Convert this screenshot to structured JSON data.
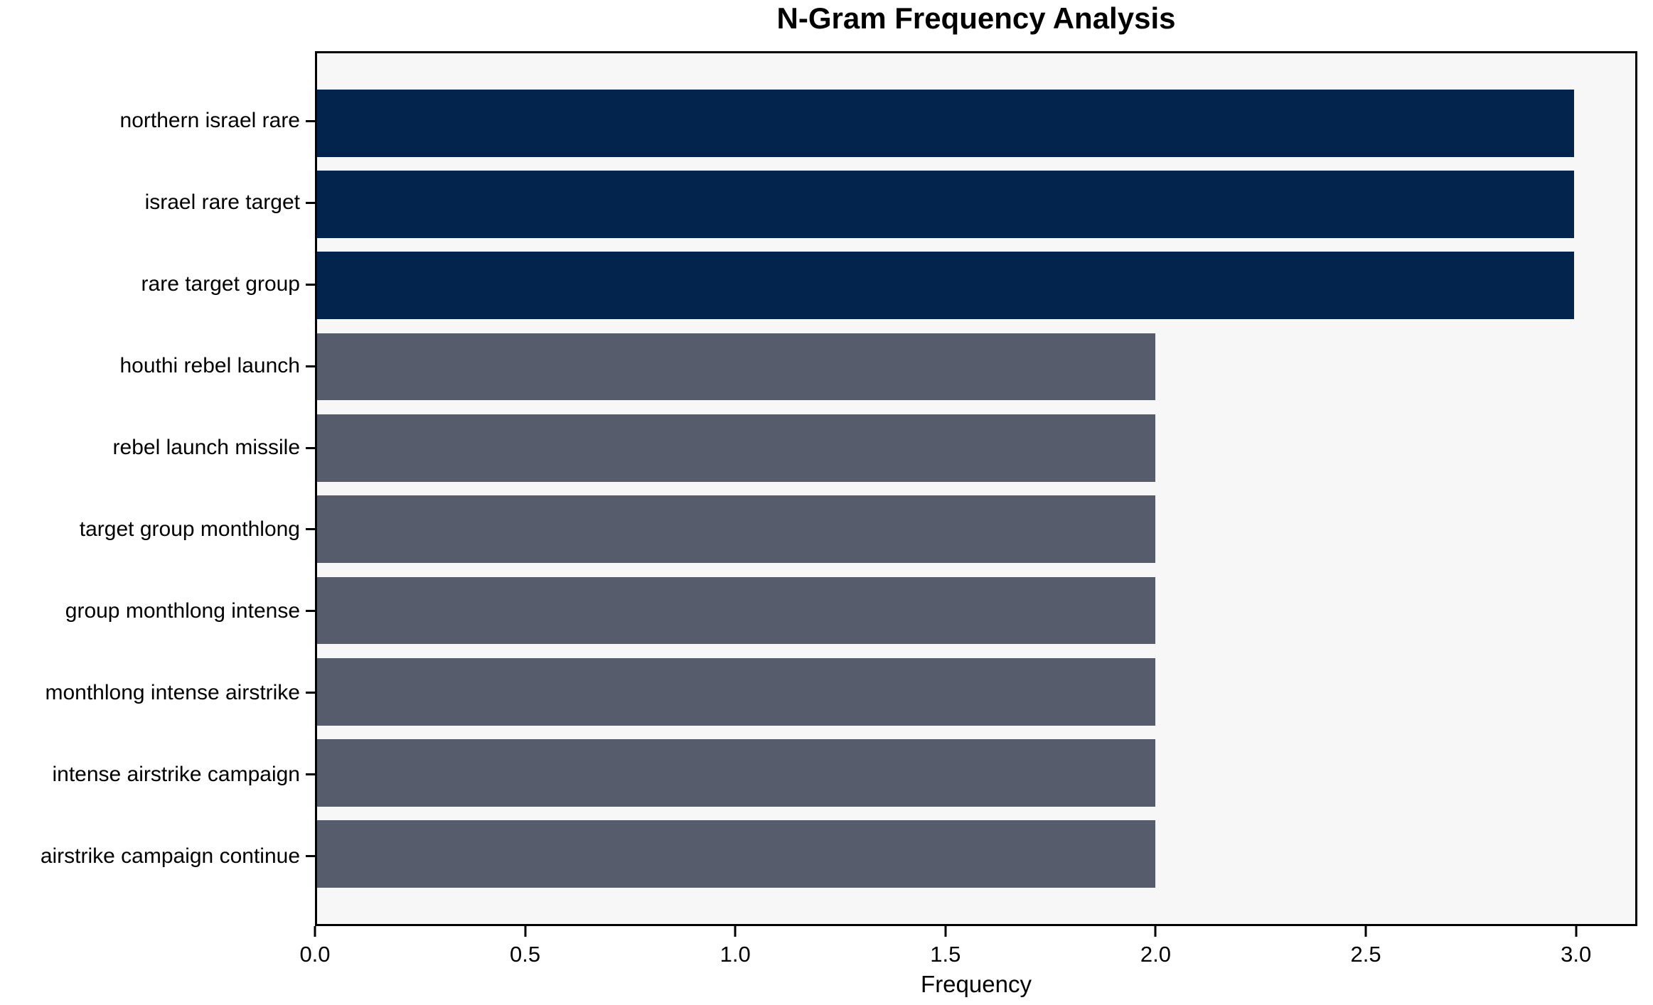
{
  "figure": {
    "title": "N-Gram Frequency Analysis",
    "xlabel": "Frequency"
  },
  "chart_data": {
    "type": "bar",
    "orientation": "horizontal",
    "title": "N-Gram Frequency Analysis",
    "xlabel": "Frequency",
    "ylabel": "",
    "categories": [
      "northern israel rare",
      "israel rare target",
      "rare target group",
      "houthi rebel launch",
      "rebel launch missile",
      "target group monthlong",
      "group monthlong intense",
      "monthlong intense airstrike",
      "intense airstrike campaign",
      "airstrike campaign continue"
    ],
    "values": [
      3,
      3,
      3,
      2,
      2,
      2,
      2,
      2,
      2,
      2
    ],
    "bar_colors": [
      "#02244d",
      "#02244d",
      "#02244d",
      "#565c6b",
      "#565c6b",
      "#565c6b",
      "#565c6b",
      "#565c6b",
      "#565c6b",
      "#565c6b"
    ],
    "x_ticks": {
      "labels": [
        "0.0",
        "0.5",
        "1.0",
        "1.5",
        "2.0",
        "2.5",
        "3.0"
      ],
      "values": [
        0,
        0.5,
        1.0,
        1.5,
        2.0,
        2.5,
        3.0
      ]
    },
    "xlim": [
      0,
      3.146
    ],
    "grid": false,
    "legend": false,
    "colors": {
      "high_bar": "#02244d",
      "normal_bar": "#565c6b",
      "plot_background": "#f7f7f8",
      "spine": "#000000",
      "text": "#000000"
    }
  }
}
